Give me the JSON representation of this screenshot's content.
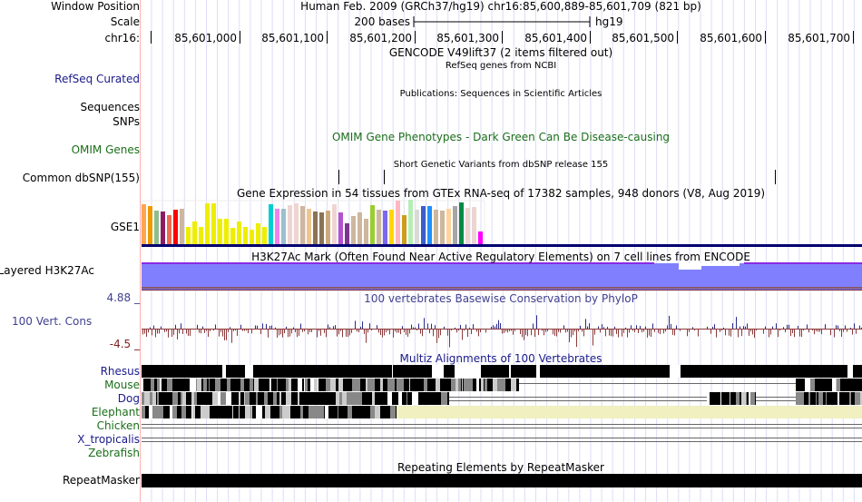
{
  "header": {
    "window_position_label": "Window Position",
    "window_position": "Human Feb. 2009 (GRCh37/hg19)   chr16:85,600,889-85,601,709 (821 bp)",
    "scale_label": "Scale",
    "scale_text": "200 bases",
    "scale_db": "hg19",
    "chrom_label": "chr16:",
    "ticks": [
      "85,601,000",
      "85,601,100",
      "85,601,200",
      "85,601,300",
      "85,601,400",
      "85,601,500",
      "85,601,600",
      "85,601,700"
    ]
  },
  "tracks": {
    "gencode_title": "GENCODE V49lift37 (2 items filtered out)",
    "refseq_title": "RefSeq genes from NCBI",
    "refseq_label": "RefSeq Curated",
    "pubs_title": "Publications: Sequences in Scientific Articles",
    "pubs_label": "Sequences",
    "snps_label": "SNPs",
    "omim_title": "OMIM Gene Phenotypes - Dark Green Can Be Disease-causing",
    "omim_label": "OMIM Genes",
    "dbsnp_title": "Short Genetic Variants from dbSNP release 155",
    "dbsnp_label": "Common dbSNP(155)",
    "gtex_title": "Gene Expression in 54 tissues from GTEx RNA-seq of 17382 samples, 948 donors (V8, Aug 2019)",
    "gtex_label": "GSE1",
    "h3k_title": "H3K27Ac Mark (Often Found Near Active Regulatory Elements) on 7 cell lines from ENCODE",
    "h3k_label": "Layered H3K27Ac",
    "cons_title": "100 vertebrates Basewise Conservation by PhyloP",
    "cons_label": "100 Vert. Cons",
    "cons_max": "4.88 _",
    "cons_min": "-4.5 _",
    "multiz_title": "Multiz Alignments of 100 Vertebrates",
    "species": [
      {
        "name": "Rhesus",
        "color": "#1a1a8a"
      },
      {
        "name": "Mouse",
        "color": "#1a6e1a"
      },
      {
        "name": "Dog",
        "color": "#1a1a8a"
      },
      {
        "name": "Elephant",
        "color": "#1a6e1a"
      },
      {
        "name": "Chicken",
        "color": "#1a6e1a"
      },
      {
        "name": "X_tropicalis",
        "color": "#1a1a8a"
      },
      {
        "name": "Zebrafish",
        "color": "#1a6e1a"
      }
    ],
    "rmsk_title": "Repeating Elements by RepeatMasker",
    "rmsk_label": "RepeatMasker"
  },
  "gtex": {
    "heights": [
      44,
      42,
      37,
      36,
      32,
      38,
      39,
      19,
      25,
      19,
      45,
      45,
      28,
      28,
      18,
      25,
      19,
      16,
      23,
      19,
      44,
      39,
      39,
      43,
      45,
      42,
      39,
      36,
      35,
      37,
      44,
      35,
      23,
      31,
      35,
      28,
      43,
      38,
      37,
      38,
      48,
      32,
      49,
      38,
      42,
      42,
      38,
      37,
      39,
      42,
      46,
      40,
      41,
      14
    ],
    "colors": [
      "#FFA54F",
      "#EE9A00",
      "#8FBC8F",
      "#8B1C62",
      "#EE6A50",
      "#FF0000",
      "#CDB79E",
      "#EEEE00",
      "#EEEE00",
      "#EEEE00",
      "#EEEE00",
      "#EEEE00",
      "#EEEE00",
      "#EEEE00",
      "#EEEE00",
      "#EEEE00",
      "#EEEE00",
      "#EEEE00",
      "#EEEE00",
      "#EEEE00",
      "#00CED1",
      "#EE82EE",
      "#9AC0CD",
      "#EED5D2",
      "#EED5D2",
      "#CDB79E",
      "#EEC591",
      "#8B7355",
      "#8B7355",
      "#CDAA7D",
      "#EED5D2",
      "#B452CD",
      "#7A378B",
      "#CDB79E",
      "#CDB79E",
      "#CDB79E",
      "#9ACD32",
      "#CDB79E",
      "#7B68EE",
      "#FFD700",
      "#FFB6C1",
      "#CD9B1D",
      "#B4EEB4",
      "#D9D9D9",
      "#3A5FCD",
      "#1E90FF",
      "#CDB79E",
      "#CDB79E",
      "#FFD39B",
      "#A6A6A6",
      "#008B45",
      "#EED5D2",
      "#EED5D2",
      "#FF00FF"
    ]
  }
}
